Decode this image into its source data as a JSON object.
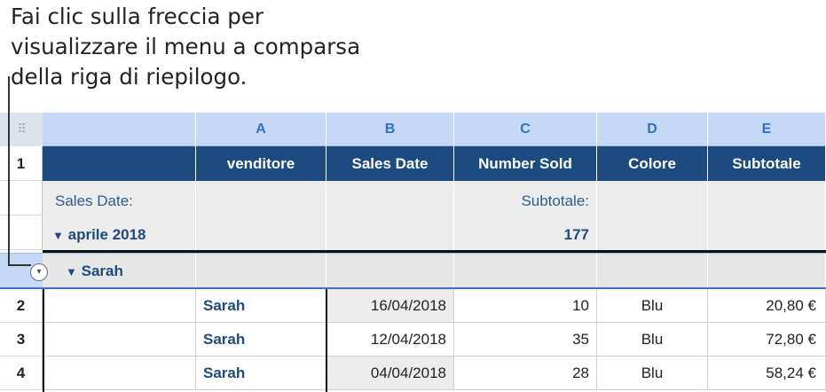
{
  "callout": {
    "line1": "Fai clic sulla freccia per",
    "line2": "visualizzare il menu a comparsa",
    "line3": "della riga di riepilogo."
  },
  "table": {
    "corner_icon": "grid-handle-icon",
    "columns": [
      "A",
      "B",
      "C",
      "D",
      "E"
    ],
    "header_row_number": "1",
    "headers": [
      "venditore",
      "Sales Date",
      "Number Sold",
      "Colore",
      "Subtotale"
    ],
    "group1": {
      "label": "Sales Date:",
      "value": "aprile 2018",
      "summary_label": "Subtotale:",
      "summary_value": "177"
    },
    "group2": {
      "value": "Sarah"
    },
    "rows": [
      {
        "num": "2",
        "venditore": "Sarah",
        "date": "16/04/2018",
        "sold": "10",
        "color": "Blu",
        "subtotal": "20,80 €"
      },
      {
        "num": "3",
        "venditore": "Sarah",
        "date": "12/04/2018",
        "sold": "35",
        "color": "Blu",
        "subtotal": "72,80 €"
      },
      {
        "num": "4",
        "venditore": "Sarah",
        "date": "04/04/2018",
        "sold": "28",
        "color": "Blu",
        "subtotal": "58,24 €"
      }
    ],
    "triangle": "▼",
    "dropdown_glyph": "▾"
  },
  "colors": {
    "header_bg": "#1d4b7f",
    "column_header_bg": "#c5d8f5",
    "accent_text": "#1d4b7f"
  }
}
